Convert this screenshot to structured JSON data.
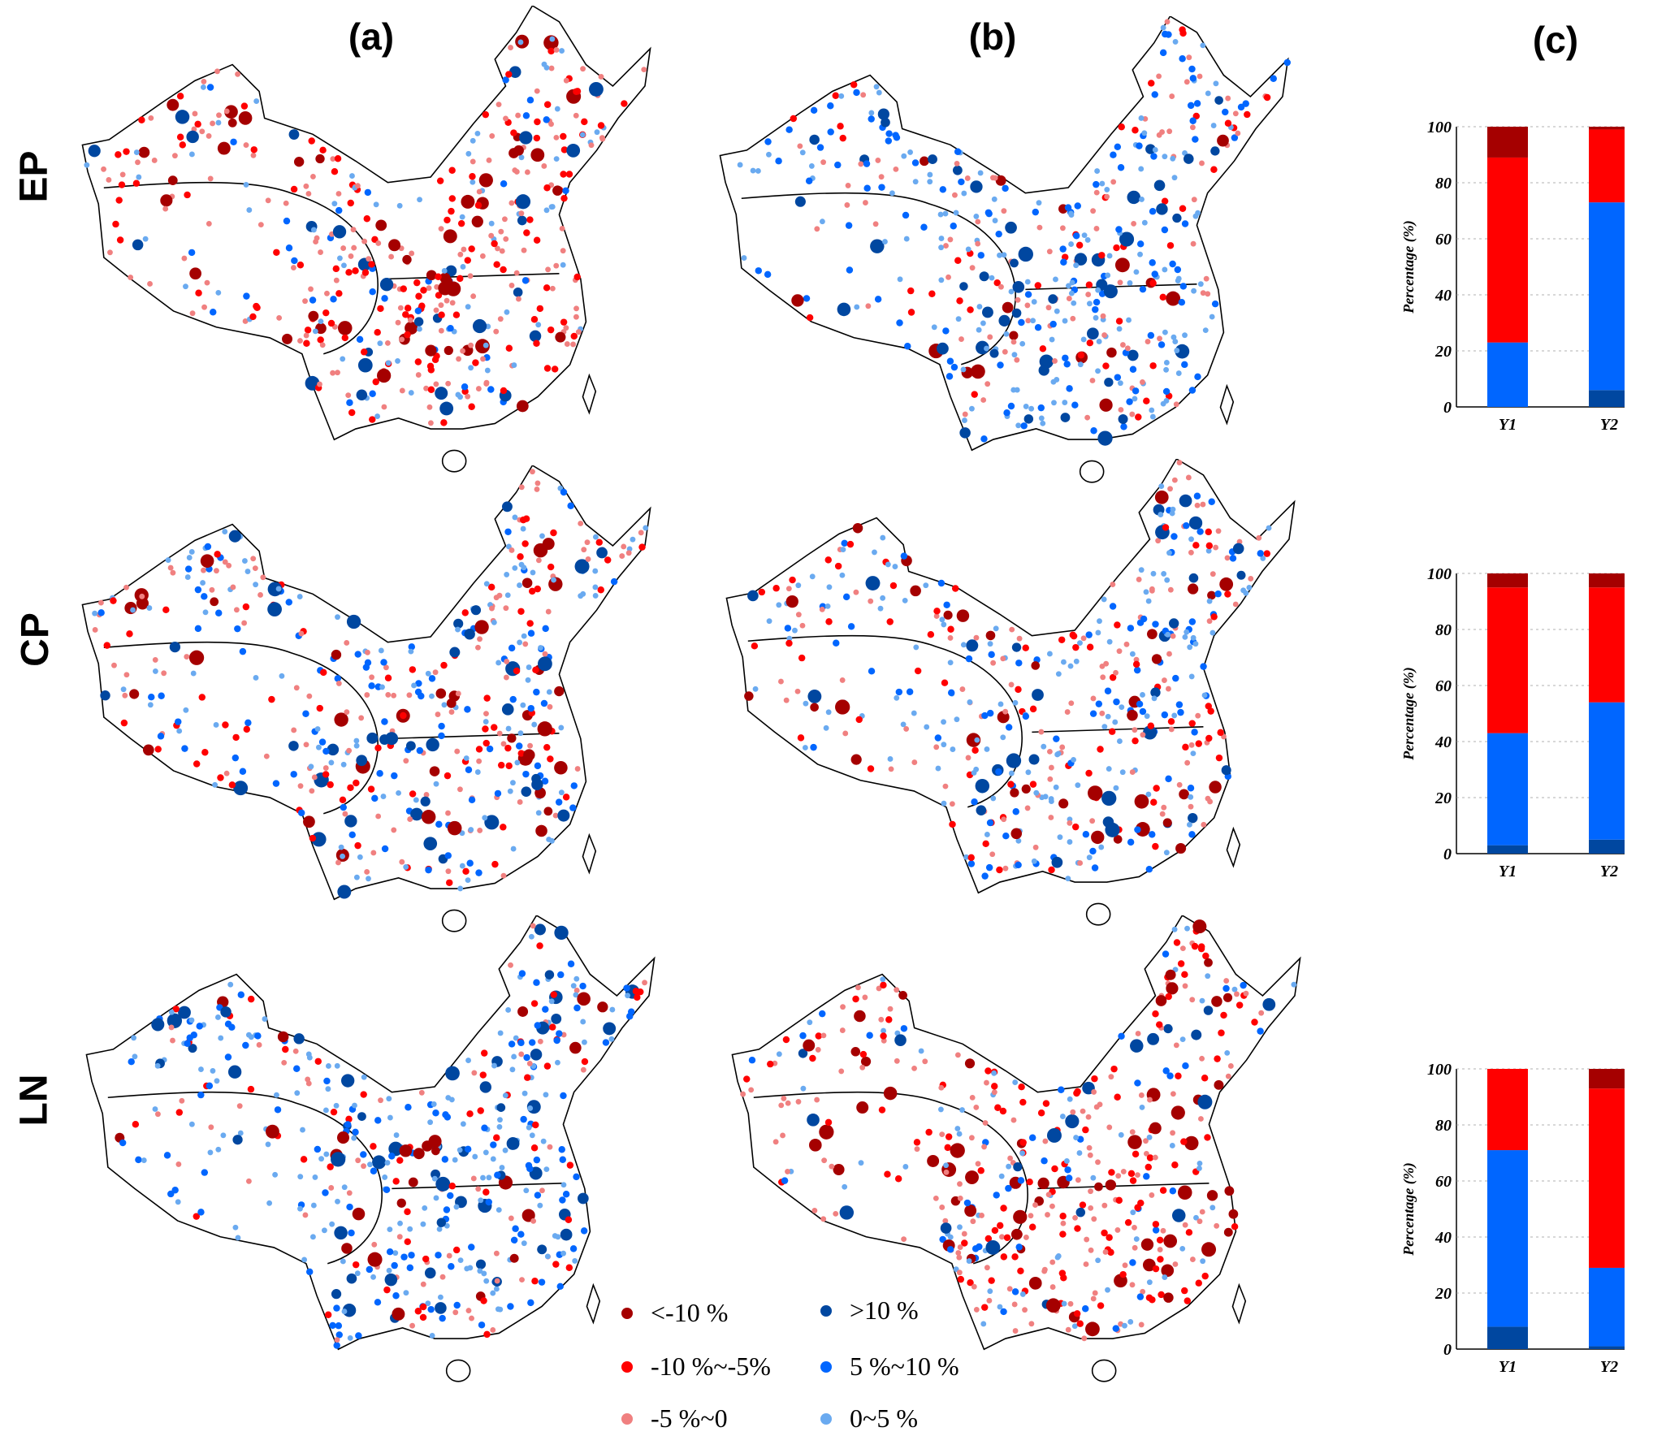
{
  "panel_labels": [
    "(a)",
    "(b)",
    "(c)"
  ],
  "row_labels": [
    "EP",
    "CP",
    "LN"
  ],
  "legend": [
    {
      "label": "<-10 %",
      "color": "#a50000"
    },
    {
      "label": "-10 %~-5%",
      "color": "#ff0000"
    },
    {
      "label": "-5 %~0",
      "color": "#f08080"
    },
    {
      "label": ">10 %",
      "color": "#0047a0"
    },
    {
      "label": "5 %~10 %",
      "color": "#0066ff"
    },
    {
      "label": "0~5 %",
      "color": "#6aaaf0"
    }
  ],
  "chart_data": [
    {
      "type": "bar",
      "stacked": true,
      "title": "EP",
      "categories": [
        "Y1",
        "Y2"
      ],
      "ylabel": "Percentage  (%)",
      "ylim": [
        0,
        100
      ],
      "yticks": [
        "0",
        "20",
        "40",
        "60",
        "80",
        "100"
      ],
      "series": [
        {
          "name": ">10 %",
          "color": "#0047a0",
          "values": [
            0,
            6
          ]
        },
        {
          "name": "5 %~10 %",
          "color": "#0066ff",
          "values": [
            23,
            67
          ]
        },
        {
          "name": "-10 %~-5%",
          "color": "#ff0000",
          "values": [
            66,
            26
          ]
        },
        {
          "name": "<-10 %",
          "color": "#a50000",
          "values": [
            11,
            1
          ]
        }
      ]
    },
    {
      "type": "bar",
      "stacked": true,
      "title": "CP",
      "categories": [
        "Y1",
        "Y2"
      ],
      "ylabel": "Percentage  (%)",
      "ylim": [
        0,
        100
      ],
      "yticks": [
        "0",
        "20",
        "40",
        "60",
        "80",
        "100"
      ],
      "series": [
        {
          "name": ">10 %",
          "color": "#0047a0",
          "values": [
            3,
            5
          ]
        },
        {
          "name": "5 %~10 %",
          "color": "#0066ff",
          "values": [
            40,
            49
          ]
        },
        {
          "name": "-10 %~-5%",
          "color": "#ff0000",
          "values": [
            52,
            41
          ]
        },
        {
          "name": "<-10 %",
          "color": "#a50000",
          "values": [
            5,
            5
          ]
        }
      ]
    },
    {
      "type": "bar",
      "stacked": true,
      "title": "LN",
      "categories": [
        "Y1",
        "Y2"
      ],
      "ylabel": "Percentage  (%)",
      "ylim": [
        0,
        100
      ],
      "yticks": [
        "0",
        "20",
        "40",
        "60",
        "80",
        "100"
      ],
      "series": [
        {
          "name": ">10 %",
          "color": "#0047a0",
          "values": [
            8,
            1
          ]
        },
        {
          "name": "5 %~10 %",
          "color": "#0066ff",
          "values": [
            63,
            28
          ]
        },
        {
          "name": "-10 %~-5%",
          "color": "#ff0000",
          "values": [
            29,
            64
          ]
        },
        {
          "name": "<-10 %",
          "color": "#a50000",
          "values": [
            0,
            7
          ]
        }
      ]
    }
  ],
  "map_bias": [
    [
      0.75,
      0.35
    ],
    [
      0.5,
      0.45
    ],
    [
      0.3,
      0.7
    ]
  ]
}
